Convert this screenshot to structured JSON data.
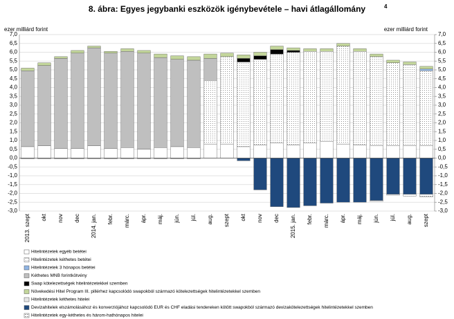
{
  "chart_data": {
    "type": "bar",
    "stacked": true,
    "title": "8. ábra: Egyes jegybanki eszközök igénybevétele – havi átlagállomány",
    "title_note": "4",
    "ylabel": "ezer milliárd forint",
    "y2label": "ezer milliárd forint",
    "categories": [
      "2013. szept",
      "okt",
      "nov",
      "dec",
      "2014. jan.",
      "febr.",
      "márc.",
      "ápr.",
      "máj.",
      "jún.",
      "júl.",
      "aug.",
      "szept",
      "okt",
      "nov",
      "dec",
      "2015. jan.",
      "febr.",
      "márc.",
      "ápr.",
      "máj.",
      "jún.",
      "júl.",
      "aug.",
      "szept"
    ],
    "ylim": [
      -3,
      7
    ],
    "y2lim": [
      -3,
      7
    ],
    "grid": true,
    "yticks": [
      {
        "value": -3,
        "label": "-3,0"
      },
      {
        "value": -2.5,
        "label": "-2,5"
      },
      {
        "value": -2,
        "label": "-2,0"
      },
      {
        "value": -1.5,
        "label": "-1,5"
      },
      {
        "value": -1,
        "label": "-1,0"
      },
      {
        "value": -0.5,
        "label": "-0,5"
      },
      {
        "value": 0,
        "label": "0,0"
      },
      {
        "value": 0.5,
        "label": "0,5"
      },
      {
        "value": 1,
        "label": "1,0"
      },
      {
        "value": 1.5,
        "label": "1,5"
      },
      {
        "value": 2,
        "label": "2,0"
      },
      {
        "value": 2.5,
        "label": "2,5"
      },
      {
        "value": 3,
        "label": "3,0"
      },
      {
        "value": 3.5,
        "label": "3,5"
      },
      {
        "value": 4,
        "label": "4,0"
      },
      {
        "value": 4.5,
        "label": "4,5"
      },
      {
        "value": 5,
        "label": "5,0"
      },
      {
        "value": 5.5,
        "label": "5,5"
      },
      {
        "value": 6,
        "label": "6,0"
      },
      {
        "value": 6.5,
        "label": "6,5"
      },
      {
        "value": 7,
        "label": "7,0"
      }
    ],
    "y2ticks": [
      {
        "value": -3,
        "label": "-3,0"
      },
      {
        "value": -2.5,
        "label": "-2,5"
      },
      {
        "value": -2,
        "label": "-2,0"
      },
      {
        "value": -1.5,
        "label": "-1,5"
      },
      {
        "value": -1,
        "label": "-1,0"
      },
      {
        "value": -0.5,
        "label": "-0,5"
      },
      {
        "value": 0,
        "label": "0,0"
      },
      {
        "value": 0.5,
        "label": "0,5"
      },
      {
        "value": 1,
        "label": "1,0"
      },
      {
        "value": 1.5,
        "label": "1,5"
      },
      {
        "value": 2,
        "label": "2,0"
      },
      {
        "value": 2.5,
        "label": "2,5"
      },
      {
        "value": 3,
        "label": "3,0"
      },
      {
        "value": 3.5,
        "label": "3,5"
      },
      {
        "value": 4,
        "label": "4,0"
      },
      {
        "value": 4.5,
        "label": "4,5"
      },
      {
        "value": 5,
        "label": "5,0"
      },
      {
        "value": 5.5,
        "label": "5,5"
      },
      {
        "value": 6,
        "label": "6,0"
      },
      {
        "value": 6.5,
        "label": "6,5"
      },
      {
        "value": 7,
        "label": "7,0"
      }
    ],
    "series": [
      {
        "name": "Hitelintézetek egyéb betétei",
        "color": "#ffffff",
        "values": [
          0.65,
          0.7,
          0.55,
          0.55,
          0.7,
          0.55,
          0.6,
          0.5,
          0.6,
          0.65,
          0.6,
          0.8,
          0.8,
          0.65,
          0.75,
          0.85,
          0.75,
          0.85,
          0.95,
          0.8,
          0.75,
          0.7,
          0.7,
          0.7,
          0.7
        ]
      },
      {
        "name": "Hitelintézetek kéthetes betétei",
        "color": "#ffffff",
        "pattern": "dots",
        "values": [
          0,
          0,
          0,
          0,
          0,
          0,
          0,
          0,
          0,
          0,
          0,
          3.6,
          4.95,
          4.8,
          4.85,
          5.05,
          5.25,
          5.2,
          5.1,
          5.55,
          5.3,
          5.05,
          4.7,
          4.6,
          4.25
        ]
      },
      {
        "name": "Hitelintézetek 3 hónapos betétei",
        "color": "#8fb4e3",
        "values": [
          0,
          0,
          0,
          0,
          0,
          0,
          0,
          0,
          0,
          0,
          0,
          0,
          0,
          0,
          0,
          0,
          0,
          0,
          0,
          0,
          0,
          0,
          0,
          0,
          0.1
        ]
      },
      {
        "name": "Kéthetes MNB forintkötvény",
        "color": "#bfbfbf",
        "values": [
          4.3,
          4.55,
          5.1,
          5.4,
          5.55,
          5.4,
          5.45,
          5.45,
          5.1,
          4.95,
          4.95,
          1.25,
          0,
          0,
          0,
          0,
          0,
          0,
          0,
          0,
          0,
          0,
          0,
          0,
          0
        ]
      },
      {
        "name": "Swap kötelezettségek hitelintézetekkel szemben",
        "color": "#000000",
        "values": [
          0,
          0,
          0,
          0,
          0,
          0,
          0,
          0,
          0,
          0,
          0,
          0,
          0,
          0.2,
          0.2,
          0.25,
          0.1,
          0,
          0,
          0,
          0,
          0,
          0,
          0,
          0
        ]
      },
      {
        "name": "Növekedési Hitel Program III. pillérhez kapcsolódó swapokból származó kötelezettségek hitelintézetekkel szemben",
        "color": "#c3d69b",
        "values": [
          0.15,
          0.15,
          0.1,
          0.15,
          0.1,
          0.1,
          0.15,
          0.15,
          0.2,
          0.2,
          0.2,
          0.25,
          0.2,
          0.2,
          0.2,
          0.2,
          0.15,
          0.15,
          0.15,
          0.15,
          0.15,
          0.15,
          0.15,
          0.15,
          0.15
        ]
      },
      {
        "name": "Hitelintézetek kéthetes hitelei",
        "color": "#e6e6e6",
        "values": [
          -0.05,
          -0.05,
          -0.05,
          -0.05,
          -0.05,
          -0.05,
          -0.05,
          -0.05,
          -0.05,
          -0.05,
          -0.05,
          0,
          0,
          0,
          0,
          0,
          0,
          0,
          0,
          0,
          0,
          0,
          0,
          0,
          0
        ]
      },
      {
        "name": "Devizahitelek elszámolásához és konverziójához kapcsolódó EUR és CHF eladási tendereken kötött swapokból származó devizakötelezettségek hitelintézetekkel szemben",
        "color": "#1f497d",
        "values": [
          0,
          0,
          0,
          0,
          0,
          0,
          0,
          0,
          0,
          0,
          0,
          0,
          0,
          -0.15,
          -1.8,
          -2.75,
          -2.8,
          -2.7,
          -2.55,
          -2.5,
          -2.5,
          -2.4,
          -2.05,
          -2.05,
          -2.05
        ]
      },
      {
        "name": "Hitelintézetek egy-kéthetes és három-hathónapos hitelei",
        "color": "#ffffff",
        "pattern": "dashes",
        "values": [
          0,
          0,
          0,
          0,
          0,
          0,
          0,
          0,
          0,
          0,
          0,
          0,
          0,
          0,
          0,
          0,
          0,
          0,
          0,
          0,
          0,
          -0.05,
          -0.05,
          -0.1,
          -0.15
        ]
      }
    ]
  }
}
